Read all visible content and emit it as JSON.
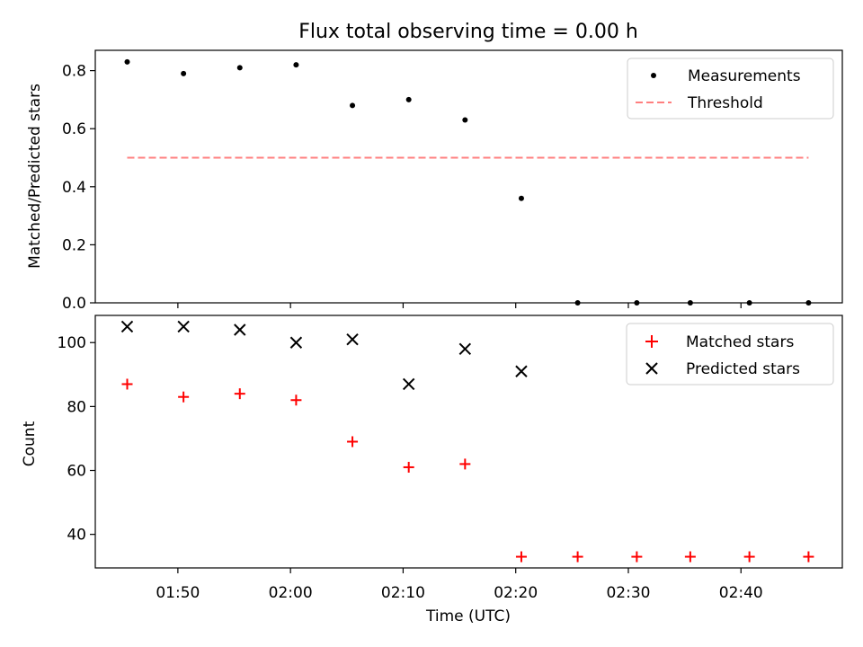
{
  "figure_title": "Flux total observing time = 0.00 h",
  "x_axis": {
    "label": "Time (UTC)",
    "range": [
      "01:42:40",
      "02:49:00"
    ],
    "ticks": [
      "01:50",
      "02:00",
      "02:10",
      "02:20",
      "02:30",
      "02:40"
    ]
  },
  "colors": {
    "measurements": "#000000",
    "threshold": "#ff7f7f",
    "matched": "#ff0000",
    "predicted": "#000000"
  },
  "chart_data": [
    {
      "type": "scatter",
      "name": "ratio",
      "ylabel": "Matched/Predicted stars",
      "ylim": [
        0,
        0.87
      ],
      "yticks": [
        "0.0",
        "0.2",
        "0.4",
        "0.6",
        "0.8"
      ],
      "legend_position": "upper right",
      "series": [
        {
          "name": "Measurements",
          "kind": "point",
          "x": [
            "01:45:30",
            "01:50:30",
            "01:55:30",
            "02:00:30",
            "02:05:30",
            "02:10:30",
            "02:15:30",
            "02:20:30",
            "02:25:30",
            "02:30:45",
            "02:35:30",
            "02:40:45",
            "02:46:00"
          ],
          "y": [
            0.83,
            0.79,
            0.81,
            0.82,
            0.68,
            0.7,
            0.63,
            0.36,
            0.0,
            0.0,
            0.0,
            0.0,
            0.0
          ]
        },
        {
          "name": "Threshold",
          "kind": "dashed-line",
          "x": [
            "01:45:30",
            "02:46:00"
          ],
          "y": [
            0.5,
            0.5
          ]
        }
      ]
    },
    {
      "type": "scatter",
      "name": "counts",
      "ylabel": "Count",
      "ylim": [
        29.5,
        108.5
      ],
      "yticks": [
        "40",
        "60",
        "80",
        "100"
      ],
      "legend_position": "upper right",
      "series": [
        {
          "name": "Matched stars",
          "marker": "+",
          "x": [
            "01:45:30",
            "01:50:30",
            "01:55:30",
            "02:00:30",
            "02:05:30",
            "02:10:30",
            "02:15:30",
            "02:20:30",
            "02:25:30",
            "02:30:45",
            "02:35:30",
            "02:40:45",
            "02:46:00"
          ],
          "y": [
            87,
            83,
            84,
            82,
            69,
            61,
            62,
            33,
            33,
            33,
            33,
            33,
            33
          ]
        },
        {
          "name": "Predicted stars",
          "marker": "x",
          "x": [
            "01:45:30",
            "01:50:30",
            "01:55:30",
            "02:00:30",
            "02:05:30",
            "02:10:30",
            "02:15:30",
            "02:20:30"
          ],
          "y": [
            105,
            105,
            104,
            100,
            101,
            87,
            98,
            91
          ]
        }
      ]
    }
  ]
}
